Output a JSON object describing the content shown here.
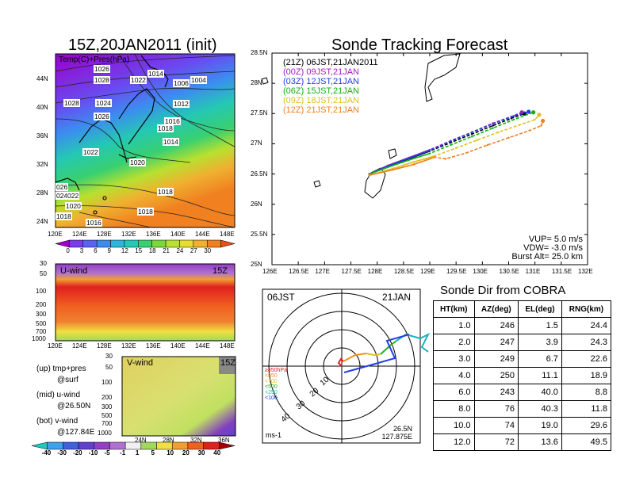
{
  "left_panel": {
    "title": "15Z,20JAN2011 (init)",
    "map_label": "Temp(C)+Pres(hPa)",
    "lat_ticks": [
      "44N",
      "40N",
      "36N",
      "32N",
      "28N",
      "24N"
    ],
    "lon_ticks": [
      "120E",
      "124E",
      "128E",
      "132E",
      "136E",
      "140E",
      "144E",
      "148E"
    ],
    "pressure_labels": [
      "1026",
      "1028",
      "1022",
      "1014",
      "1006",
      "1004",
      "1028",
      "1024",
      "1012",
      "1026",
      "1016",
      "1018",
      "1014",
      "1022",
      "1020",
      "026",
      "024",
      "022",
      "1020",
      "1018",
      "1018",
      "1018",
      "1016"
    ],
    "temp_colorbar": [
      "0",
      "3",
      "6",
      "9",
      "12",
      "15",
      "18",
      "21",
      "24",
      "27",
      "30"
    ],
    "temp_colors": [
      "#9b00c8",
      "#7a3ee6",
      "#5a62f0",
      "#3c8cf0",
      "#2cb4dc",
      "#24c8b4",
      "#38d070",
      "#7ad83c",
      "#b8e030",
      "#e8dc30",
      "#f0b030",
      "#f08020",
      "#ec4c18"
    ],
    "uwind": {
      "label": "U-wind",
      "time": "15Z",
      "y_ticks": [
        "30",
        "50",
        "100",
        "200",
        "300",
        "500",
        "700",
        "1000"
      ],
      "x_ticks": [
        "120E",
        "124E",
        "128E",
        "132E",
        "136E",
        "140E",
        "144E",
        "148E"
      ]
    },
    "vwind": {
      "label": "V-wind",
      "time": "15Z",
      "y_ticks": [
        "30",
        "50",
        "100",
        "200",
        "300",
        "500",
        "700",
        "1000"
      ],
      "x_ticks": [
        "24N",
        "28N",
        "32N",
        "36N"
      ]
    },
    "notes": [
      {
        "head": "(up) tmp+pres",
        "sub": "@surf"
      },
      {
        "head": "(mid) u-wind",
        "sub": "@26.50N"
      },
      {
        "head": "(bot) v-wind",
        "sub": "@127.84E"
      }
    ],
    "wind_colorbar": [
      "-40",
      "-30",
      "-20",
      "-10",
      "-5",
      "-1",
      "1",
      "5",
      "10",
      "20",
      "30",
      "40"
    ],
    "wind_colors": [
      "#20c8c0",
      "#40a0e8",
      "#4060e0",
      "#6040d0",
      "#9040c0",
      "#b070d0",
      "#f0f0f0",
      "#a0d860",
      "#f0e040",
      "#f0a030",
      "#f06020",
      "#e02020",
      "#a00000"
    ]
  },
  "tracking": {
    "title": "Sonde Tracking Forecast",
    "legend": [
      {
        "text": "(21Z) 06JST,21JAN2011",
        "color": "#000000"
      },
      {
        "text": "(00Z) 09JST,21JAN",
        "color": "#a020c0"
      },
      {
        "text": "(03Z) 12JST,21JAN",
        "color": "#2040e0"
      },
      {
        "text": "(06Z) 15JST,21JAN",
        "color": "#10b010"
      },
      {
        "text": "(09Z) 18JST,21JAN",
        "color": "#e0c020"
      },
      {
        "text": "(12Z) 21JST,21JAN",
        "color": "#f08020"
      }
    ],
    "params": [
      "VUP= 5.0 m/s",
      "VDW= -3.0 m/s",
      "Burst Alt= 25.0 km"
    ]
  },
  "chart_data": {
    "type": "line",
    "xlabel": "",
    "ylabel": "",
    "xlim": [
      126,
      132
    ],
    "ylim": [
      25,
      28.5
    ],
    "x_ticks": [
      "126E",
      "126.5E",
      "127E",
      "127.5E",
      "128E",
      "128.5E",
      "129E",
      "129.5E",
      "130E",
      "130.5E",
      "131E",
      "131.5E",
      "132E"
    ],
    "y_ticks": [
      "25N",
      "25.5N",
      "26N",
      "26.5N",
      "27N",
      "27.5N",
      "28N",
      "28.5N"
    ],
    "series": [
      {
        "name": "(21Z) 06JST,21JAN2011",
        "color": "#000000",
        "x": [
          127.85,
          128.2,
          128.6,
          129.0,
          129.4,
          129.8,
          130.2,
          130.55,
          130.8
        ],
        "y": [
          26.5,
          26.62,
          26.75,
          26.88,
          27.02,
          27.16,
          27.3,
          27.42,
          27.5
        ]
      },
      {
        "name": "(00Z) 09JST,21JAN",
        "color": "#a020c0",
        "x": [
          127.85,
          128.2,
          128.6,
          129.0,
          129.4,
          129.8,
          130.2,
          130.55,
          130.75
        ],
        "y": [
          26.5,
          26.64,
          26.77,
          26.9,
          27.05,
          27.19,
          27.34,
          27.45,
          27.52
        ]
      },
      {
        "name": "(03Z) 12JST,21JAN",
        "color": "#2040e0",
        "x": [
          127.85,
          128.2,
          128.6,
          129.0,
          129.4,
          129.8,
          130.2,
          130.6,
          130.88
        ],
        "y": [
          26.5,
          26.63,
          26.76,
          26.89,
          27.04,
          27.19,
          27.33,
          27.46,
          27.53
        ]
      },
      {
        "name": "(06Z) 15JST,21JAN",
        "color": "#10b010",
        "x": [
          127.85,
          128.2,
          128.6,
          129.0,
          129.4,
          129.8,
          130.2,
          130.6,
          130.97
        ],
        "y": [
          26.5,
          26.61,
          26.73,
          26.84,
          26.98,
          27.12,
          27.26,
          27.4,
          27.52
        ]
      },
      {
        "name": "(09Z) 18JST,21JAN",
        "color": "#e0c020",
        "x": [
          127.85,
          128.3,
          128.7,
          129.1,
          129.5,
          129.9,
          130.3,
          130.7,
          131.0,
          131.08
        ],
        "y": [
          26.48,
          26.59,
          26.7,
          26.8,
          26.93,
          27.06,
          27.19,
          27.31,
          27.4,
          27.48
        ]
      },
      {
        "name": "(12Z) 21JST,21JAN",
        "color": "#f08020",
        "x": [
          127.85,
          128.3,
          128.7,
          129.1,
          129.3,
          129.7,
          130.1,
          130.5,
          130.9,
          131.12,
          131.15
        ],
        "y": [
          26.48,
          26.57,
          26.66,
          26.78,
          26.75,
          26.85,
          26.98,
          27.1,
          27.22,
          27.3,
          27.38
        ]
      }
    ]
  },
  "hodograph": {
    "time": "06JST",
    "date": "21JAN",
    "ring_labels": [
      "10",
      "20",
      "30",
      "40"
    ],
    "legend": [
      {
        "text": "≥850hPa",
        "color": "#e02020"
      },
      {
        "text": "<850",
        "color": "#f09020"
      },
      {
        "text": "<700",
        "color": "#e0c020"
      },
      {
        "text": "<500",
        "color": "#20b020"
      },
      {
        "text": "<250",
        "color": "#20b0c0"
      },
      {
        "text": "<100",
        "color": "#2040e0"
      }
    ],
    "units": "ms-1",
    "location_lat": "26.5N",
    "location_lon": "127.875E"
  },
  "sonde_dir": {
    "title": "Sonde Dir from COBRA",
    "headers": [
      "HT(km)",
      "AZ(deg)",
      "EL(deg)",
      "RNG(km)"
    ],
    "rows": [
      [
        "1.0",
        "246",
        "1.5",
        "24.4"
      ],
      [
        "2.0",
        "247",
        "3.9",
        "24.3"
      ],
      [
        "3.0",
        "249",
        "6.7",
        "22.6"
      ],
      [
        "4.0",
        "250",
        "11.1",
        "18.9"
      ],
      [
        "6.0",
        "243",
        "40.0",
        "8.8"
      ],
      [
        "8.0",
        "76",
        "40.3",
        "11.8"
      ],
      [
        "10.0",
        "74",
        "19.0",
        "29.6"
      ],
      [
        "12.0",
        "72",
        "13.6",
        "49.5"
      ]
    ]
  }
}
